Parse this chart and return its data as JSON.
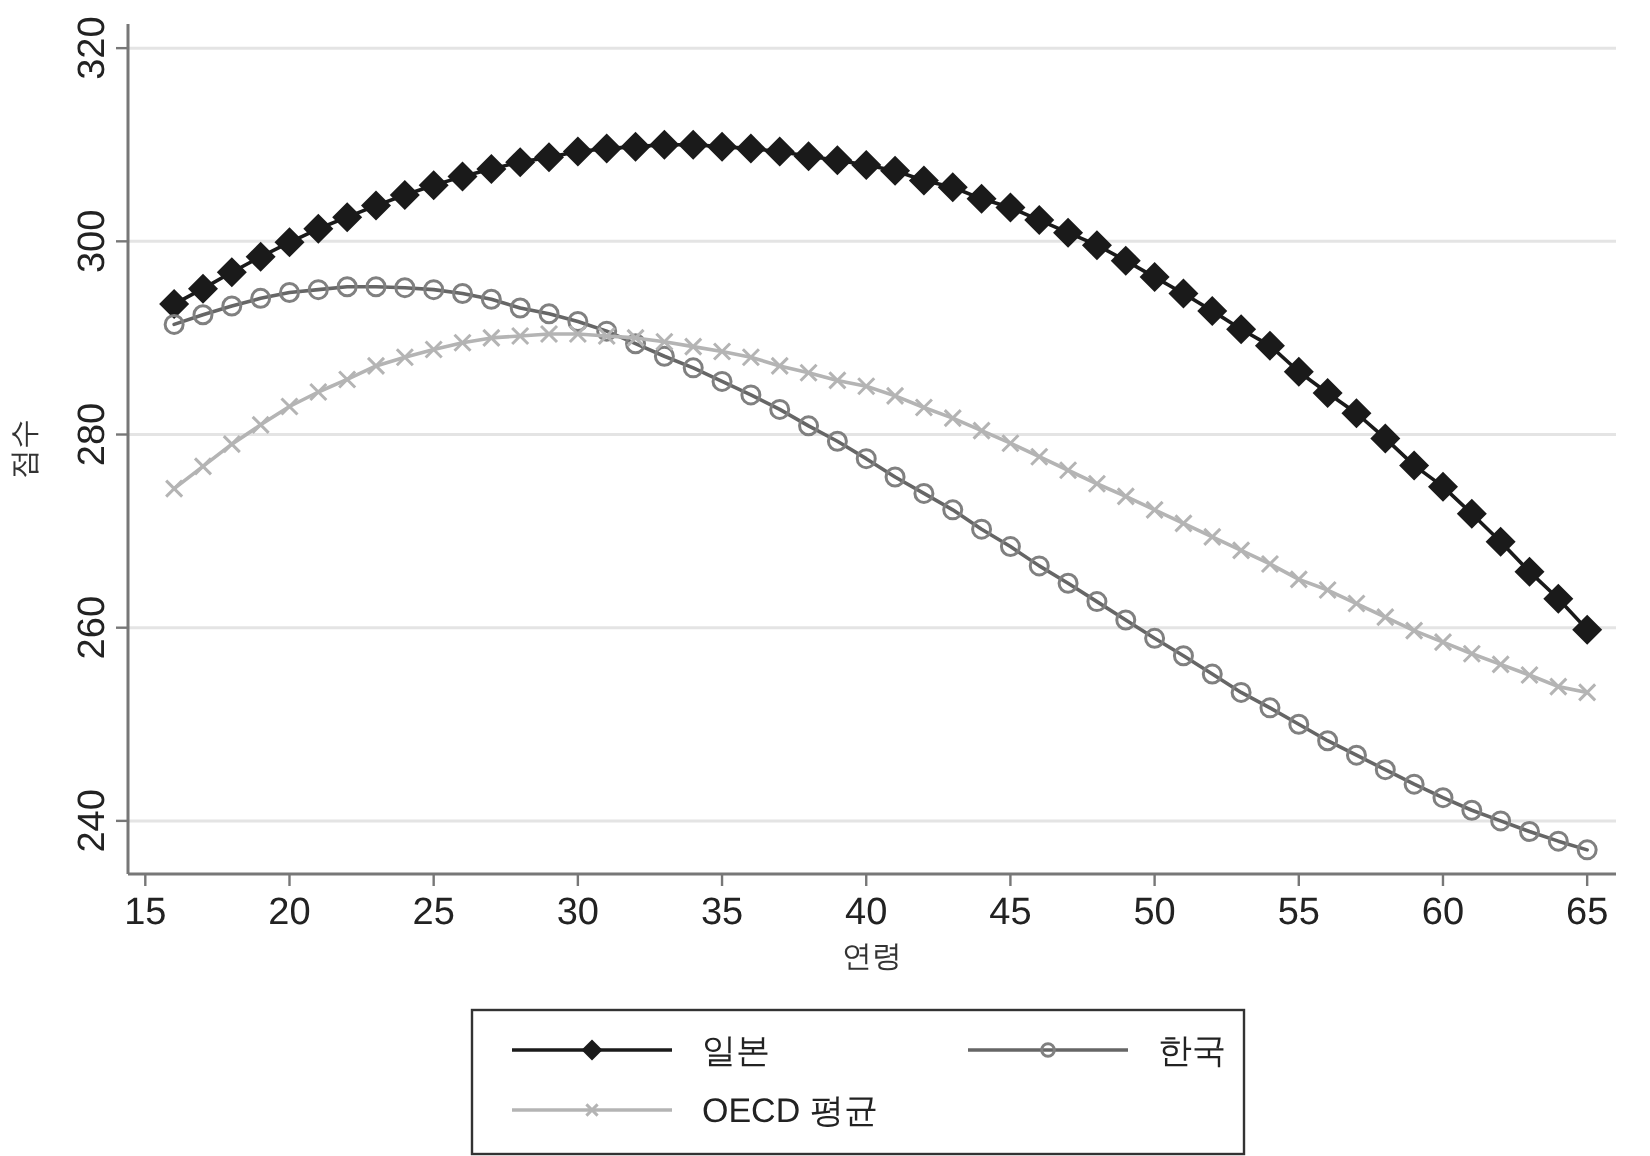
{
  "chart_data": {
    "type": "line",
    "xlabel": "연령",
    "ylabel": "점수",
    "xlim": [
      14.4,
      66
    ],
    "ylim": [
      234.5,
      322.5
    ],
    "xticks": [
      15,
      20,
      25,
      30,
      35,
      40,
      45,
      50,
      55,
      60,
      65
    ],
    "yticks": [
      240,
      260,
      280,
      300,
      320
    ],
    "grid": "y",
    "legend": "bottom",
    "line_style": "solid",
    "x": [
      16,
      17,
      18,
      19,
      20,
      21,
      22,
      23,
      24,
      25,
      26,
      27,
      28,
      29,
      30,
      31,
      32,
      33,
      34,
      35,
      36,
      37,
      38,
      39,
      40,
      41,
      42,
      43,
      44,
      45,
      46,
      47,
      48,
      49,
      50,
      51,
      52,
      53,
      54,
      55,
      56,
      57,
      58,
      59,
      60,
      61,
      62,
      63,
      64,
      65
    ],
    "series": [
      {
        "name": "일본",
        "color": "#1a1a1a",
        "marker": "diamond",
        "values": [
          293.5,
          295.1,
          296.8,
          298.4,
          299.9,
          301.3,
          302.5,
          303.7,
          304.8,
          305.8,
          306.7,
          307.5,
          308.2,
          308.7,
          309.3,
          309.6,
          309.8,
          310.0,
          310.0,
          309.8,
          309.6,
          309.3,
          308.8,
          308.4,
          307.9,
          307.3,
          306.3,
          305.6,
          304.4,
          303.5,
          302.2,
          300.9,
          299.6,
          298.0,
          296.3,
          294.6,
          292.8,
          290.9,
          289.2,
          286.5,
          284.3,
          282.2,
          279.6,
          276.8,
          274.6,
          271.8,
          268.9,
          265.8,
          263.0,
          259.8
        ]
      },
      {
        "name": "한국",
        "color": "#666666",
        "marker": "circle",
        "values": [
          291.4,
          292.4,
          293.3,
          294.1,
          294.7,
          295.0,
          295.3,
          295.3,
          295.2,
          295.0,
          294.6,
          294.0,
          293.1,
          292.5,
          291.7,
          290.7,
          289.4,
          288.1,
          286.9,
          285.5,
          284.1,
          282.6,
          280.9,
          279.3,
          277.5,
          275.6,
          273.9,
          272.2,
          270.2,
          268.4,
          266.4,
          264.6,
          262.7,
          260.8,
          258.9,
          257.1,
          255.2,
          253.3,
          251.7,
          250.0,
          248.3,
          246.8,
          245.3,
          243.8,
          242.4,
          241.1,
          240.0,
          238.9,
          237.9,
          237.0
        ]
      },
      {
        "name": "OECD 평균",
        "color": "#b4b4b4",
        "marker": "cross",
        "values": [
          274.4,
          276.7,
          279.0,
          281.0,
          282.9,
          284.4,
          285.7,
          287.1,
          288.0,
          288.8,
          289.5,
          290.0,
          290.2,
          290.4,
          290.4,
          290.2,
          290.0,
          289.6,
          289.1,
          288.6,
          288.0,
          287.1,
          286.4,
          285.6,
          285.0,
          284.0,
          282.8,
          281.7,
          280.4,
          279.1,
          277.7,
          276.3,
          274.9,
          273.6,
          272.2,
          270.8,
          269.4,
          268.0,
          266.6,
          265.0,
          263.9,
          262.5,
          261.1,
          259.7,
          258.5,
          257.3,
          256.2,
          255.1,
          253.9,
          253.3
        ]
      }
    ]
  }
}
